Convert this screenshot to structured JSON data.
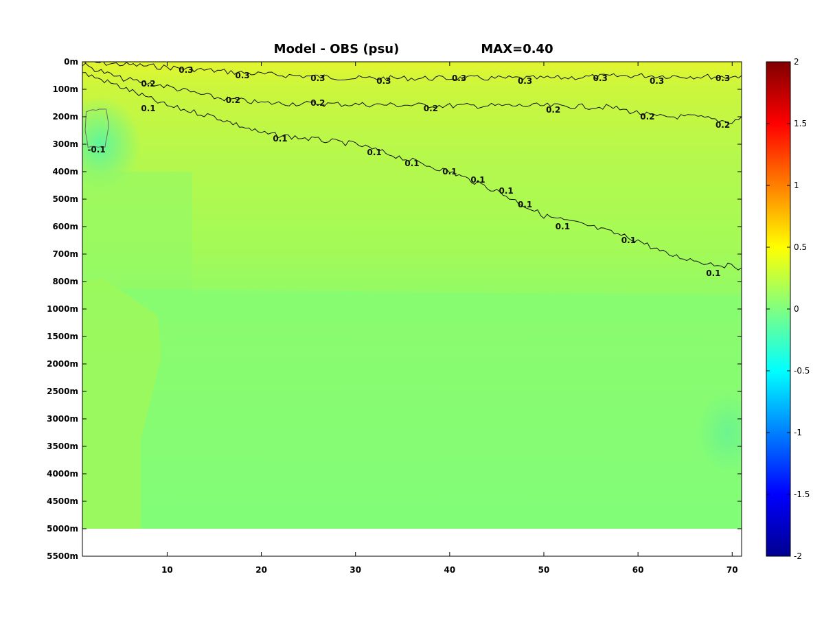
{
  "chart_data": {
    "type": "heatmap",
    "title": "Model - OBS (psu)",
    "max_label": "MAX=0.40",
    "x_ticks": [
      10,
      20,
      30,
      40,
      50,
      60,
      70
    ],
    "xlim": [
      1,
      71
    ],
    "y_ticks": [
      "0m",
      "100m",
      "200m",
      "300m",
      "400m",
      "500m",
      "600m",
      "700m",
      "800m",
      "1000m",
      "1500m",
      "2000m",
      "2500m",
      "3000m",
      "3500m",
      "4000m",
      "4500m",
      "5000m",
      "5500m"
    ],
    "colorbar": {
      "min": -2,
      "max": 2,
      "ticks": [
        "2",
        "1.5",
        "1",
        "0.5",
        "0",
        "-0.5",
        "-1",
        "-1.5",
        "-2"
      ],
      "colormap": "jet"
    },
    "contours": [
      {
        "level": 0.3,
        "points": [
          [
            1,
            0.0
          ],
          [
            10,
            0.2
          ],
          [
            20,
            0.45
          ],
          [
            30,
            0.6
          ],
          [
            40,
            0.6
          ],
          [
            50,
            0.6
          ],
          [
            60,
            0.5
          ],
          [
            70,
            0.55
          ],
          [
            71,
            0.5
          ]
        ],
        "labels": [
          [
            12,
            0.3
          ],
          [
            18,
            0.5
          ],
          [
            26,
            0.6
          ],
          [
            33,
            0.7
          ],
          [
            41,
            0.6
          ],
          [
            48,
            0.7
          ],
          [
            56,
            0.6
          ],
          [
            62,
            0.7
          ],
          [
            69,
            0.6
          ]
        ]
      },
      {
        "level": 0.2,
        "points": [
          [
            1,
            0.1
          ],
          [
            5,
            0.6
          ],
          [
            10,
            0.9
          ],
          [
            15,
            1.3
          ],
          [
            20,
            1.5
          ],
          [
            30,
            1.55
          ],
          [
            40,
            1.6
          ],
          [
            50,
            1.6
          ],
          [
            57,
            1.65
          ],
          [
            62,
            2.0
          ],
          [
            66,
            2.0
          ],
          [
            70,
            2.2
          ],
          [
            71,
            2.0
          ]
        ],
        "labels": [
          [
            8,
            0.8
          ],
          [
            17,
            1.4
          ],
          [
            26,
            1.5
          ],
          [
            38,
            1.7
          ],
          [
            51,
            1.75
          ],
          [
            61,
            2.0
          ],
          [
            69,
            2.3
          ]
        ]
      },
      {
        "level": 0.1,
        "points": [
          [
            1,
            0.4
          ],
          [
            5,
            0.9
          ],
          [
            10,
            1.6
          ],
          [
            15,
            2.0
          ],
          [
            20,
            2.6
          ],
          [
            25,
            2.8
          ],
          [
            30,
            3.0
          ],
          [
            35,
            3.5
          ],
          [
            40,
            4.0
          ],
          [
            45,
            4.7
          ],
          [
            50,
            5.6
          ],
          [
            55,
            6.0
          ],
          [
            60,
            6.5
          ],
          [
            63,
            7.0
          ],
          [
            67,
            7.3
          ],
          [
            71,
            7.5
          ]
        ],
        "labels": [
          [
            8,
            1.7
          ],
          [
            22,
            2.8
          ],
          [
            32,
            3.3
          ],
          [
            36,
            3.7
          ],
          [
            40,
            4.0
          ],
          [
            43,
            4.3
          ],
          [
            46,
            4.7
          ],
          [
            48,
            5.2
          ],
          [
            52,
            6.0
          ],
          [
            59,
            6.5
          ],
          [
            68,
            7.7
          ]
        ]
      },
      {
        "level": -0.1,
        "closed": true,
        "points": [
          [
            1.4,
            1.8
          ],
          [
            3.5,
            1.7
          ],
          [
            3.8,
            2.3
          ],
          [
            3.4,
            3.1
          ],
          [
            1.6,
            3.1
          ],
          [
            1.3,
            2.5
          ]
        ],
        "labels": [
          [
            2.5,
            3.2
          ]
        ]
      }
    ]
  }
}
